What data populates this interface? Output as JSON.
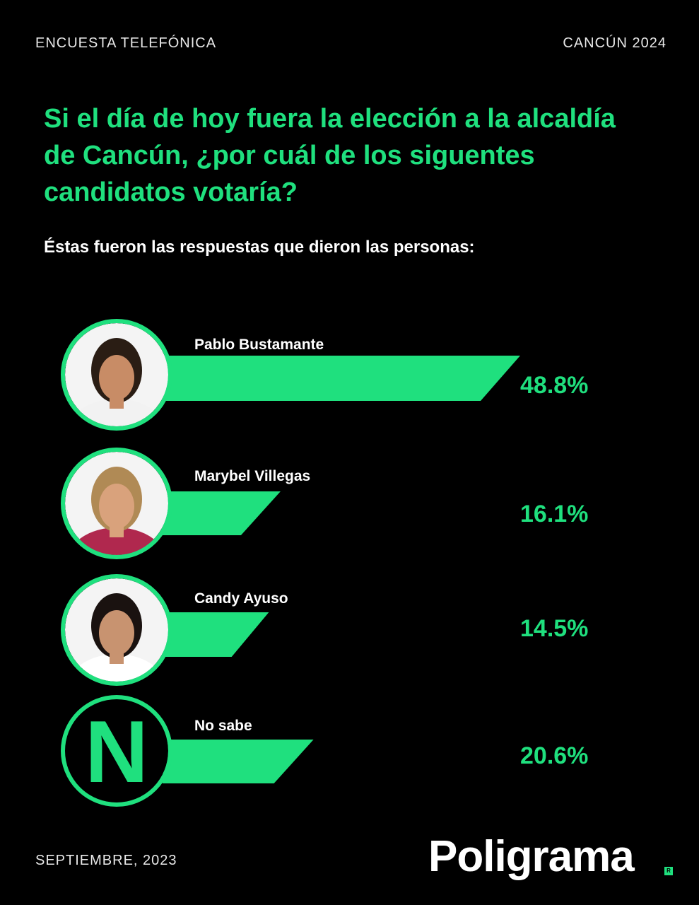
{
  "header": {
    "survey_type": "ENCUESTA TELEFÓNICA",
    "location_year": "CANCÚN 2024"
  },
  "question": "Si el día de hoy fuera la elección a la alcaldía de Cancún, ¿por cuál de los siguentes candidatos votaría?",
  "subtitle": "Éstas fueron las respuestas que dieron las personas:",
  "chart_data": {
    "type": "bar",
    "orientation": "horizontal",
    "categories": [
      "Pablo Bustamante",
      "Marybel Villegas",
      "Candy Ayuso",
      "No sabe"
    ],
    "values": [
      48.8,
      16.1,
      14.5,
      20.6
    ],
    "value_labels": [
      "48.8%",
      "16.1%",
      "14.5%",
      "20.6%"
    ],
    "unit": "%",
    "avatar_letter_no_sabe": "N",
    "colors": {
      "bar": "#1fe07e",
      "label": "#ffffff",
      "value": "#1fe07e",
      "background": "#000000"
    }
  },
  "footer": {
    "date": "SEPTIEMBRE, 2023",
    "brand": "Poligrama",
    "brand_mark": "R"
  }
}
